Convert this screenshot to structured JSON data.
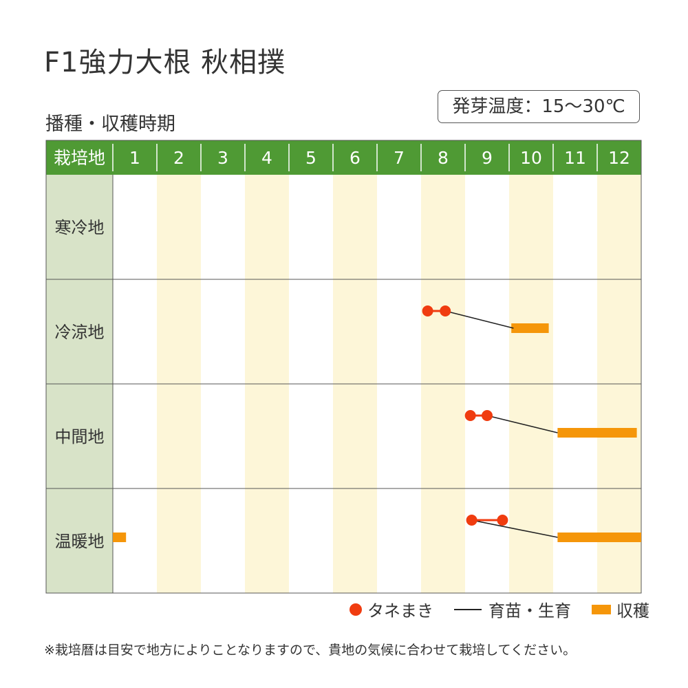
{
  "title": "F1強力大根 秋相撲",
  "subtitle": "播種・収穫時期",
  "germination_temp": "発芽温度：15〜30℃",
  "colors": {
    "header_green": "#4f9a34",
    "row_label_bg": "#d8e3c8",
    "alt_column": "#fdf6d8",
    "sowing": "#f03c10",
    "harvest": "#f5960a",
    "growth_line": "#222222"
  },
  "chart_data": {
    "type": "gantt",
    "header_label": "栽培地",
    "months": [
      "1",
      "2",
      "3",
      "4",
      "5",
      "6",
      "7",
      "8",
      "9",
      "10",
      "11",
      "12"
    ],
    "regions": [
      {
        "name": "寒冷地",
        "sowing": null,
        "growth": null,
        "harvest": []
      },
      {
        "name": "冷涼地",
        "sowing": [
          8.15,
          8.55
        ],
        "growth": [
          8.55,
          10.1
        ],
        "harvest": [
          [
            10.05,
            10.9
          ]
        ]
      },
      {
        "name": "中間地",
        "sowing": [
          9.12,
          9.5
        ],
        "growth": [
          9.5,
          11.1
        ],
        "harvest": [
          [
            11.1,
            12.9
          ]
        ]
      },
      {
        "name": "温暖地",
        "sowing": [
          9.15,
          9.85
        ],
        "growth": [
          9.15,
          11.1
        ],
        "harvest": [
          [
            11.1,
            13.0
          ],
          [
            1.0,
            1.3
          ]
        ]
      }
    ]
  },
  "legend": {
    "sowing": "タネまき",
    "growth": "育苗・生育",
    "harvest": "収穫"
  },
  "note": "※栽培暦は目安で地方によりことなりますので、貴地の気候に合わせて栽培してください。"
}
